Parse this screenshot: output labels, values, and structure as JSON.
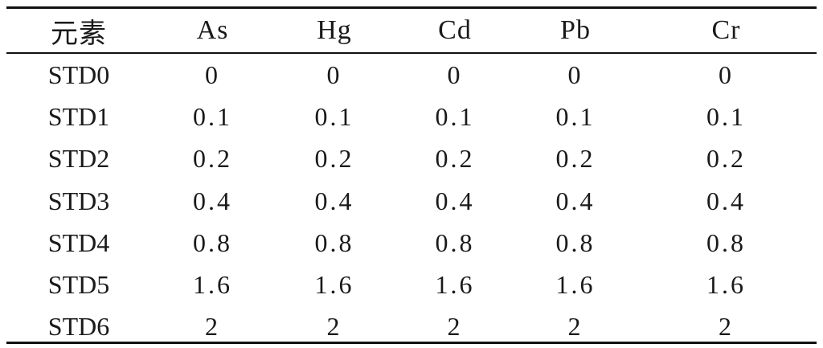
{
  "table": {
    "headers": [
      "元素",
      "As",
      "Hg",
      "Cd",
      "Pb",
      "Cr"
    ],
    "rows": [
      {
        "label": "STD0",
        "values": [
          "0",
          "0",
          "0",
          "0",
          "0"
        ]
      },
      {
        "label": "STD1",
        "values": [
          "0.1",
          "0.1",
          "0.1",
          "0.1",
          "0.1"
        ]
      },
      {
        "label": "STD2",
        "values": [
          "0.2",
          "0.2",
          "0.2",
          "0.2",
          "0.2"
        ]
      },
      {
        "label": "STD3",
        "values": [
          "0.4",
          "0.4",
          "0.4",
          "0.4",
          "0.4"
        ]
      },
      {
        "label": "STD4",
        "values": [
          "0.8",
          "0.8",
          "0.8",
          "0.8",
          "0.8"
        ]
      },
      {
        "label": "STD5",
        "values": [
          "1.6",
          "1.6",
          "1.6",
          "1.6",
          "1.6"
        ]
      },
      {
        "label": "STD6",
        "values": [
          "2",
          "2",
          "2",
          "2",
          "2"
        ]
      }
    ]
  }
}
